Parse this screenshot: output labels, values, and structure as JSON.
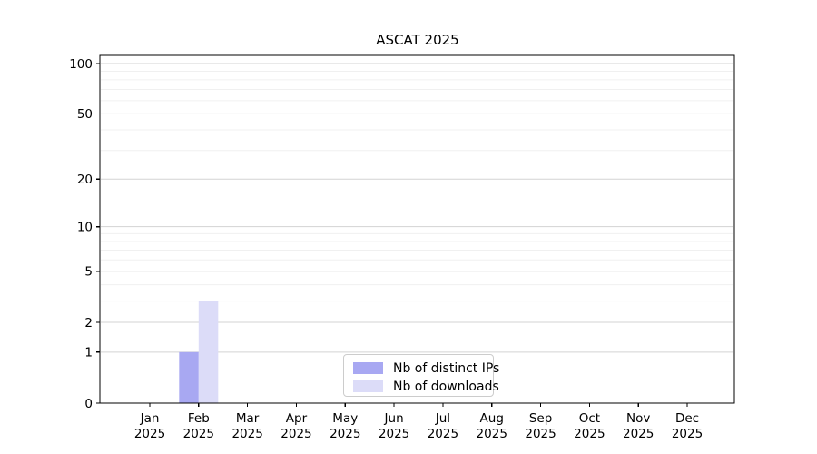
{
  "chart_data": {
    "type": "bar",
    "title": "ASCAT 2025",
    "categories": [
      "Jan",
      "Feb",
      "Mar",
      "Apr",
      "May",
      "Jun",
      "Jul",
      "Aug",
      "Sep",
      "Oct",
      "Nov",
      "Dec"
    ],
    "category_year": "2025",
    "series": [
      {
        "name": "Nb of distinct IPs",
        "color": "#a8a8f2",
        "values": [
          0,
          1,
          0,
          0,
          0,
          0,
          0,
          0,
          0,
          0,
          0,
          0
        ]
      },
      {
        "name": "Nb of downloads",
        "color": "#dcdcf8",
        "values": [
          0,
          3,
          0,
          0,
          0,
          0,
          0,
          0,
          0,
          0,
          0,
          0
        ]
      }
    ],
    "xlabel": "",
    "ylabel": "",
    "yscale": "log1p",
    "ylim": [
      0,
      112
    ],
    "yticks": [
      0,
      1,
      2,
      5,
      10,
      20,
      50,
      100
    ],
    "yticks_minor": [
      3,
      4,
      6,
      7,
      8,
      9,
      30,
      40,
      60,
      70,
      80,
      90
    ],
    "grid": "horizontal",
    "legend_position": "lower-center-inside",
    "colors": {
      "axis": "#000000",
      "grid_major": "#d3d3d3",
      "grid_minor": "#f0f0f0",
      "legend_border": "#cccccc",
      "background": "#ffffff"
    }
  }
}
